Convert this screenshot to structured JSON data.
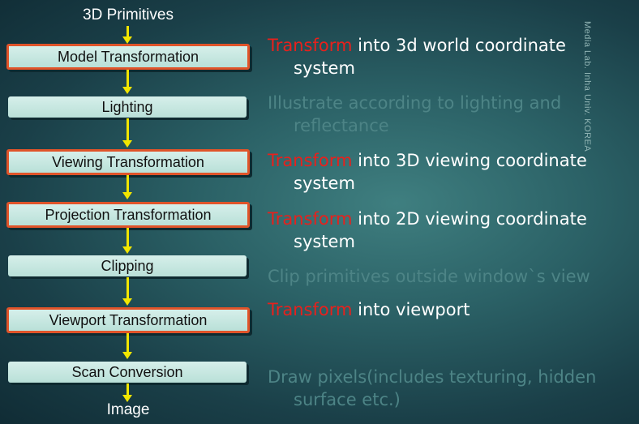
{
  "diagram": {
    "input_label": "3D Primitives",
    "output_label": "Image",
    "stages": [
      {
        "label": "Model Transformation",
        "highlighted": true
      },
      {
        "label": "Lighting",
        "highlighted": false
      },
      {
        "label": "Viewing Transformation",
        "highlighted": true
      },
      {
        "label": "Projection Transformation",
        "highlighted": true
      },
      {
        "label": "Clipping",
        "highlighted": false
      },
      {
        "label": "Viewport Transformation",
        "highlighted": true
      },
      {
        "label": "Scan Conversion",
        "highlighted": false
      }
    ],
    "descriptions": [
      {
        "keyword": "Transform",
        "line1": " into 3d world coordinate",
        "line2": "system"
      },
      {
        "line1": "Illustrate according to lighting and",
        "line2": "reflectance"
      },
      {
        "keyword": "Transform",
        "line1": " into 3D viewing coordinate",
        "line2": "system"
      },
      {
        "keyword": "Transform",
        "line1": " into 2D viewing coordinate",
        "line2": "system"
      },
      {
        "line1": "Clip primitives outside window`s view"
      },
      {
        "keyword": "Transform",
        "line1": " into viewport"
      },
      {
        "line1": "Draw pixels(includes texturing, hidden",
        "line2": "surface etc.)"
      }
    ]
  },
  "watermark": "Media Lab. Inha Univ. KOREA",
  "colors": {
    "arrow": "#f2e600",
    "highlight_border": "#e0542a",
    "keyword": "#e8201c",
    "dim_text": "#4d8486",
    "box_fill": "#c8e8e1"
  }
}
